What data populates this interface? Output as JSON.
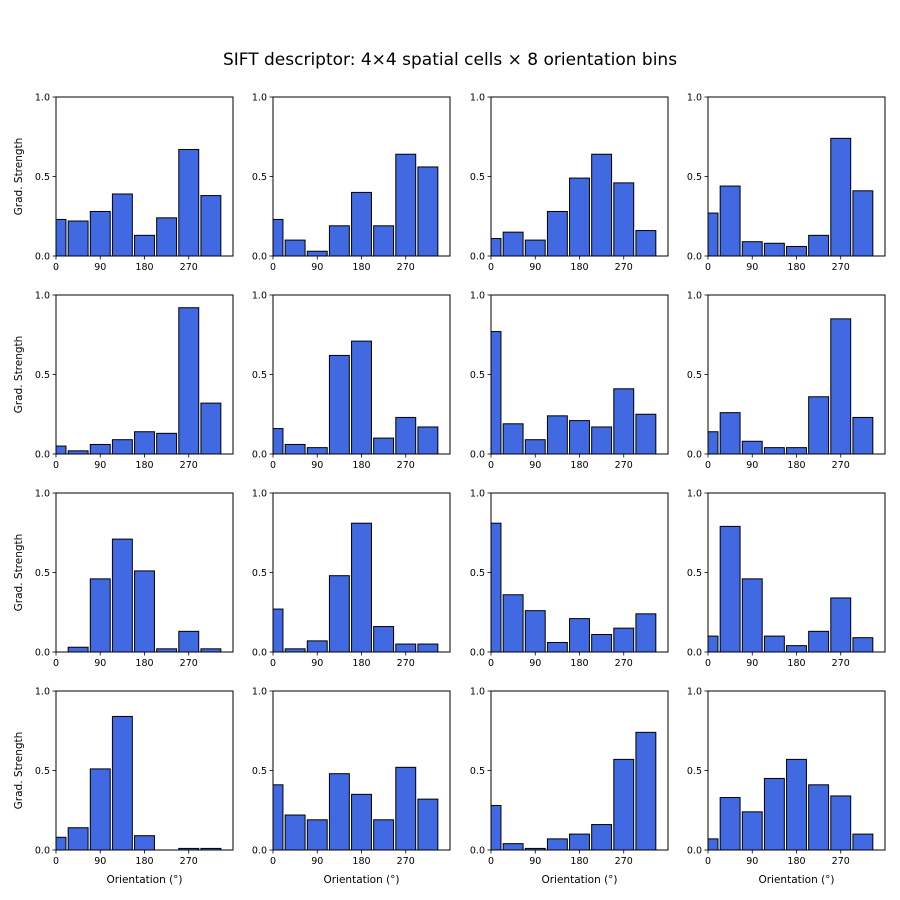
{
  "chart_data": {
    "type": "bar",
    "title": "SIFT descriptor: 4×4 spatial cells × 8 orientation bins",
    "xlabel": "Orientation (°)",
    "ylabel": "Grad. Strength",
    "bin_centers": [
      0,
      45,
      90,
      135,
      180,
      225,
      270,
      315
    ],
    "xticks": [
      0,
      90,
      180,
      270
    ],
    "xtick_labels": [
      "0",
      "90",
      "180",
      "270"
    ],
    "yticks": [
      0,
      0.5,
      1
    ],
    "ytick_labels": [
      "0.0",
      "0.5",
      "1.0"
    ],
    "ylim": [
      0,
      1
    ],
    "xlim": [
      0,
      360
    ],
    "grid": false,
    "bar_color": "#4169e1",
    "edge_color": "#000000",
    "layout": "4x4",
    "cells": [
      {
        "row": 0,
        "col": 0,
        "values": [
          0.23,
          0.22,
          0.28,
          0.39,
          0.13,
          0.24,
          0.67,
          0.38
        ]
      },
      {
        "row": 0,
        "col": 1,
        "values": [
          0.23,
          0.1,
          0.03,
          0.19,
          0.4,
          0.19,
          0.64,
          0.56
        ]
      },
      {
        "row": 0,
        "col": 2,
        "values": [
          0.11,
          0.15,
          0.1,
          0.28,
          0.49,
          0.64,
          0.46,
          0.16
        ]
      },
      {
        "row": 0,
        "col": 3,
        "values": [
          0.27,
          0.44,
          0.09,
          0.08,
          0.06,
          0.13,
          0.74,
          0.41
        ]
      },
      {
        "row": 1,
        "col": 0,
        "values": [
          0.05,
          0.02,
          0.06,
          0.09,
          0.14,
          0.13,
          0.92,
          0.32
        ]
      },
      {
        "row": 1,
        "col": 1,
        "values": [
          0.16,
          0.06,
          0.04,
          0.62,
          0.71,
          0.1,
          0.23,
          0.17
        ]
      },
      {
        "row": 1,
        "col": 2,
        "values": [
          0.77,
          0.19,
          0.09,
          0.24,
          0.21,
          0.17,
          0.41,
          0.25
        ]
      },
      {
        "row": 1,
        "col": 3,
        "values": [
          0.14,
          0.26,
          0.08,
          0.04,
          0.04,
          0.36,
          0.85,
          0.23
        ]
      },
      {
        "row": 2,
        "col": 0,
        "values": [
          0.0,
          0.03,
          0.46,
          0.71,
          0.51,
          0.02,
          0.13,
          0.02
        ]
      },
      {
        "row": 2,
        "col": 1,
        "values": [
          0.27,
          0.02,
          0.07,
          0.48,
          0.81,
          0.16,
          0.05,
          0.05
        ]
      },
      {
        "row": 2,
        "col": 2,
        "values": [
          0.81,
          0.36,
          0.26,
          0.06,
          0.21,
          0.11,
          0.15,
          0.24
        ]
      },
      {
        "row": 2,
        "col": 3,
        "values": [
          0.1,
          0.79,
          0.46,
          0.1,
          0.04,
          0.13,
          0.34,
          0.09
        ]
      },
      {
        "row": 3,
        "col": 0,
        "values": [
          0.08,
          0.14,
          0.51,
          0.84,
          0.09,
          0.0,
          0.01,
          0.01
        ]
      },
      {
        "row": 3,
        "col": 1,
        "values": [
          0.41,
          0.22,
          0.19,
          0.48,
          0.35,
          0.19,
          0.52,
          0.32
        ]
      },
      {
        "row": 3,
        "col": 2,
        "values": [
          0.28,
          0.04,
          0.01,
          0.07,
          0.1,
          0.16,
          0.57,
          0.74
        ]
      },
      {
        "row": 3,
        "col": 3,
        "values": [
          0.07,
          0.33,
          0.24,
          0.45,
          0.57,
          0.41,
          0.34,
          0.1
        ]
      }
    ]
  }
}
